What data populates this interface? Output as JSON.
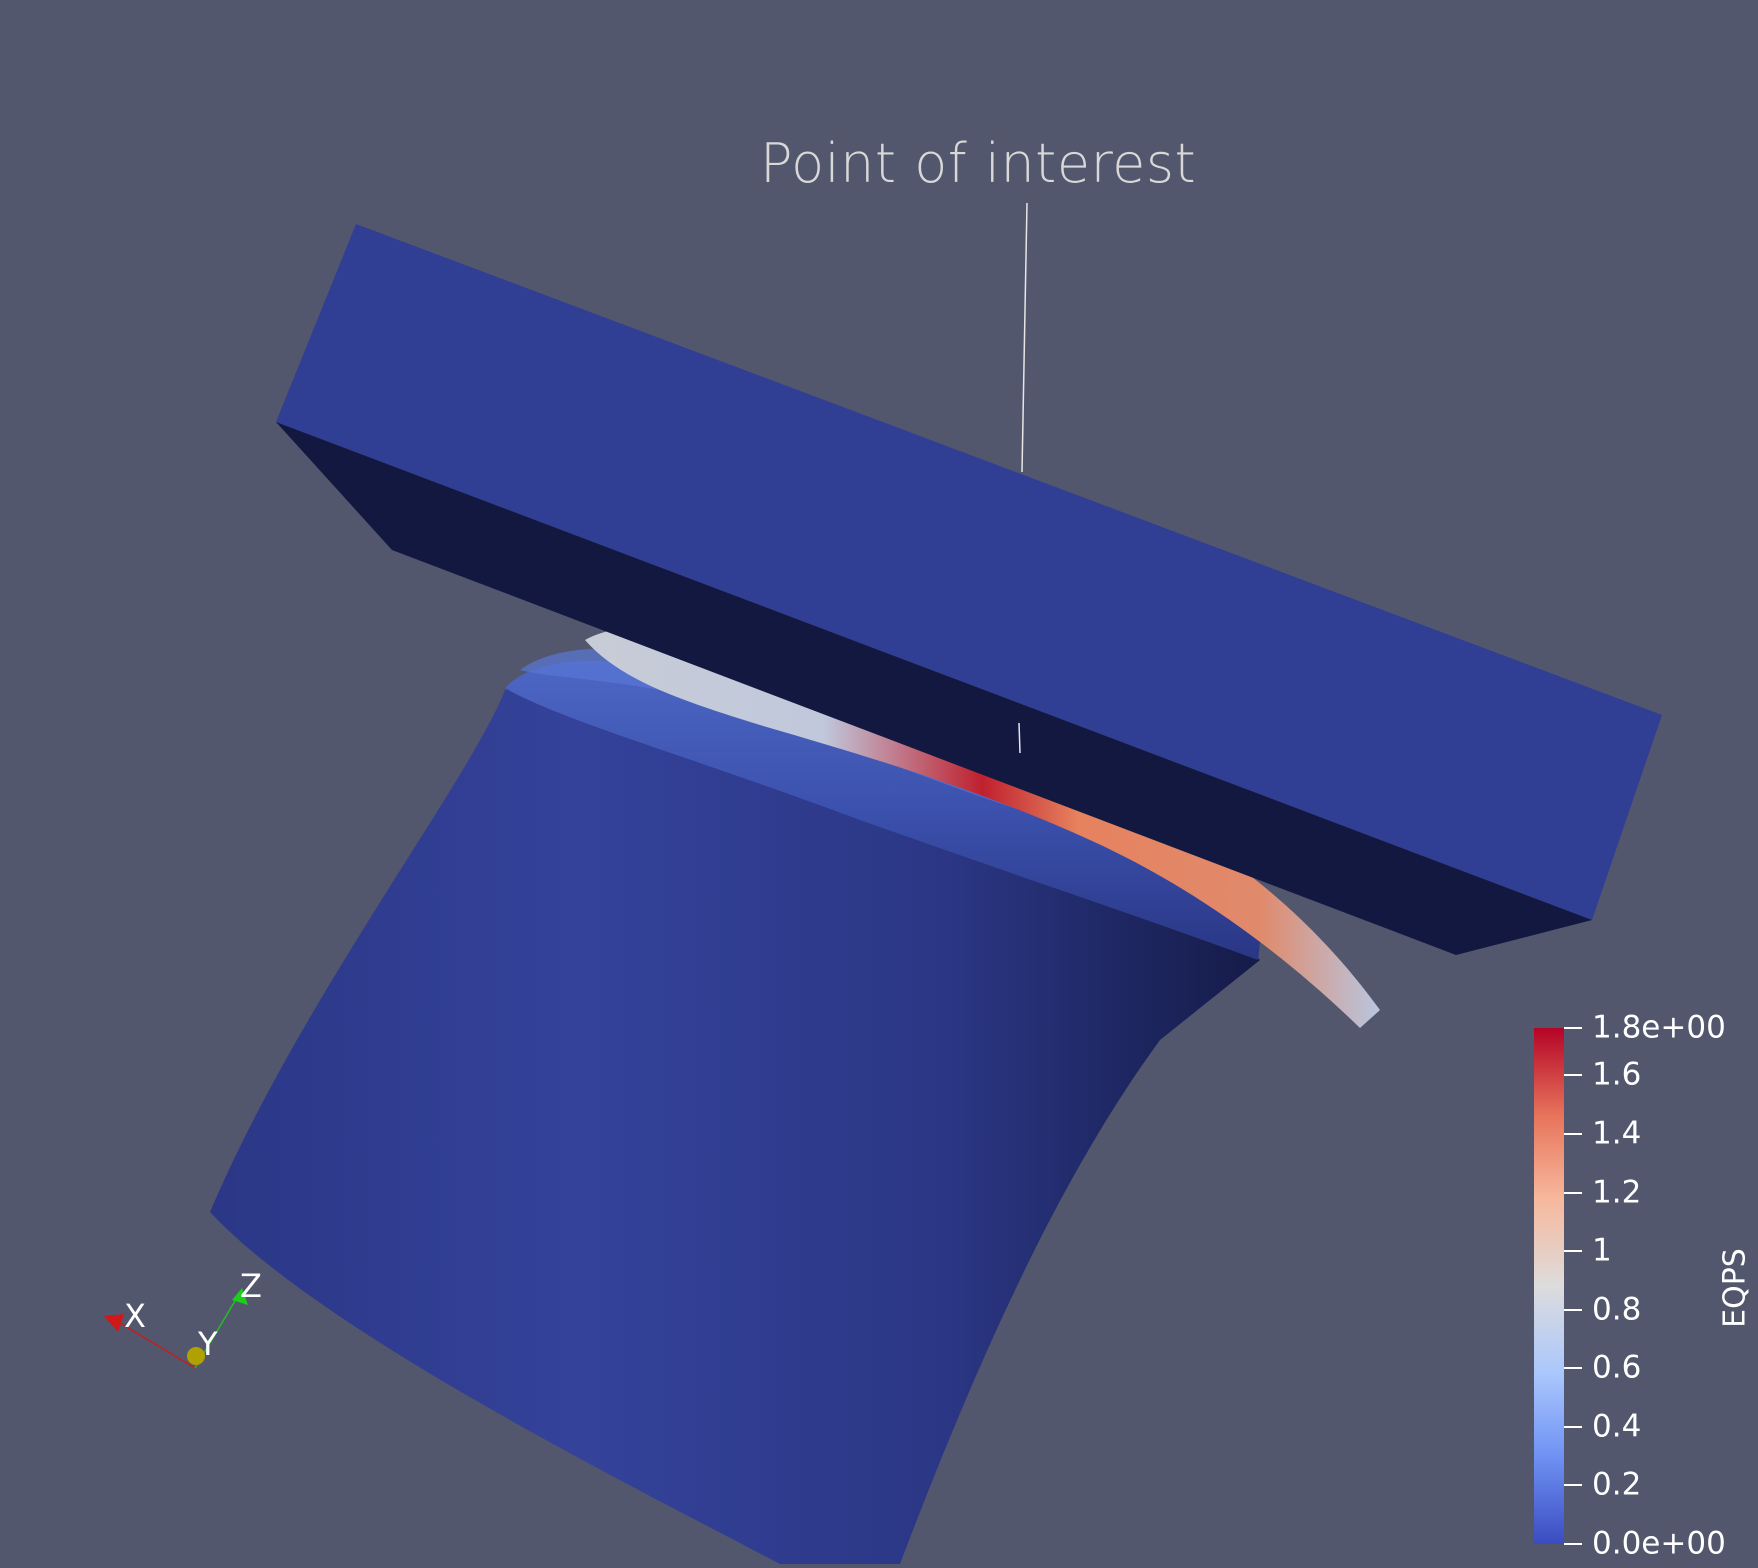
{
  "annotation": {
    "label": "Point of interest"
  },
  "color_legend": {
    "title": "EQPS",
    "ticks": [
      "1.8e+00",
      "1.6",
      "1.4",
      "1.2",
      "1",
      "0.8",
      "0.6",
      "0.4",
      "0.2",
      "0.0e+00"
    ],
    "range": [
      0,
      1.8
    ],
    "colormap": [
      "#b40426",
      "#e7745b",
      "#f7b89c",
      "#dddcdc",
      "#aac7fd",
      "#6f92f3",
      "#3b4cc0"
    ]
  },
  "orientation_axes": {
    "x": "X",
    "y": "Y",
    "z": "Z"
  },
  "colors": {
    "background": "#52576e",
    "plate_face": "#303e94",
    "plate_side": "#121840",
    "cylinder": "#2f3c8f"
  }
}
